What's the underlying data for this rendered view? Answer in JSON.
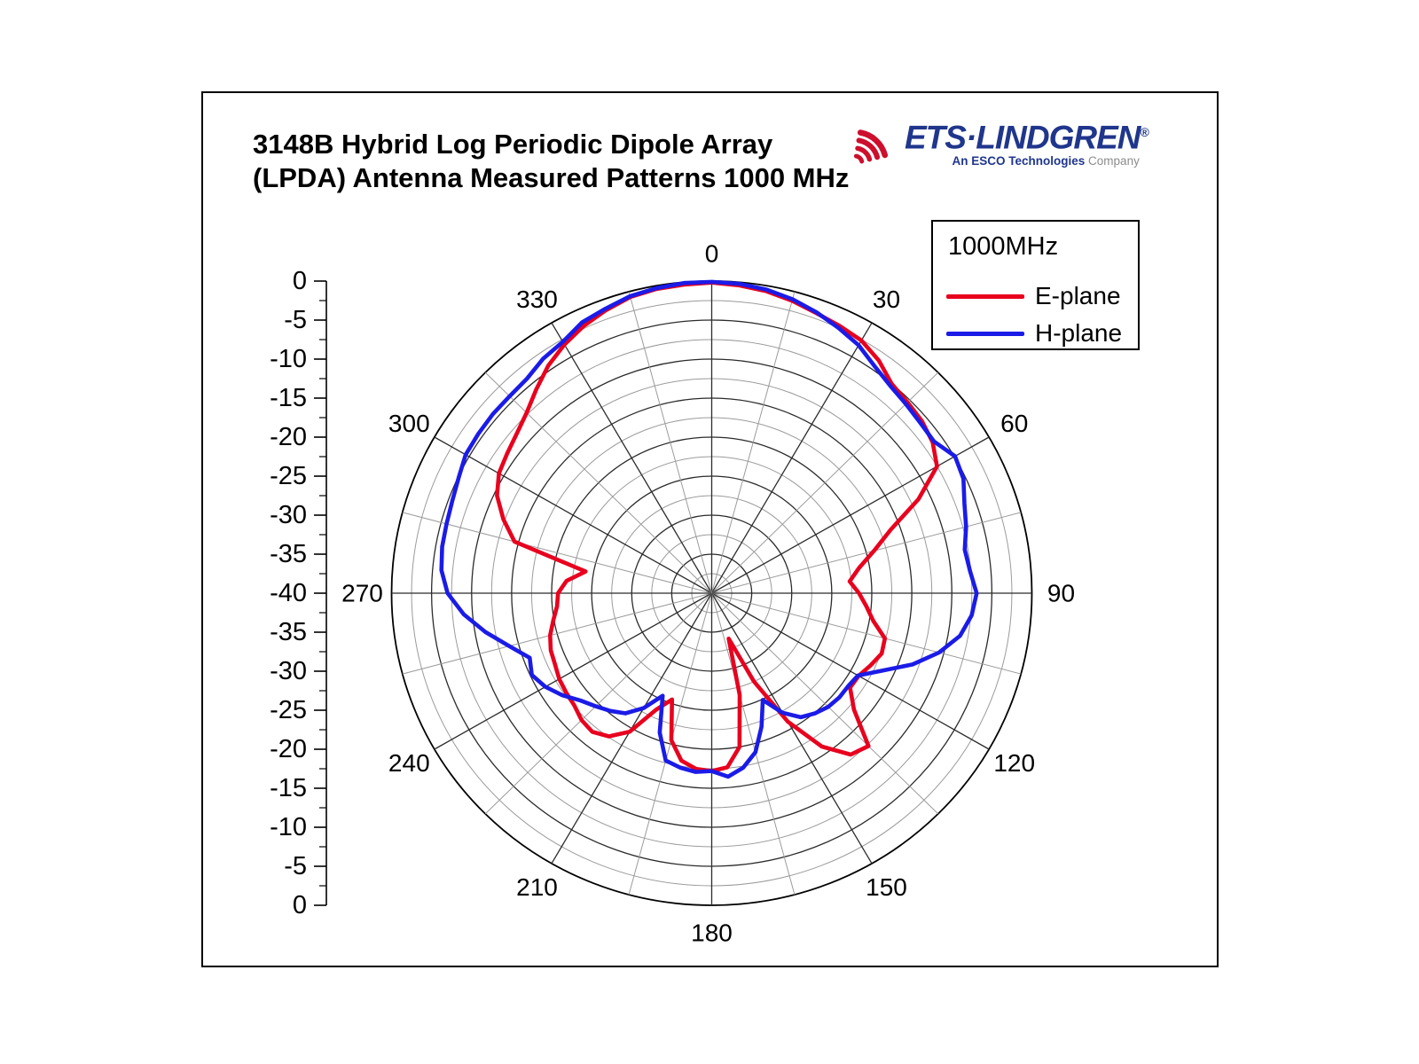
{
  "figure": {
    "title_line1": "3148B Hybrid Log Periodic Dipole Array",
    "title_line2": "(LPDA) Antenna Measured Patterns 1000 MHz"
  },
  "brand": {
    "icon": "radio-waves-icon",
    "name": "ETS·LINDGREN",
    "registered": "®",
    "tagline_bold": "An ESCO Technologies",
    "tagline_light": " Company",
    "navy": "#20368C",
    "red": "#CE0E2D",
    "gray": "#8C8C8C"
  },
  "legend": {
    "title": "1000MHz",
    "items": [
      {
        "label": "E-plane",
        "color": "#E8001E"
      },
      {
        "label": "H-plane",
        "color": "#1B1BE8"
      }
    ]
  },
  "chart_data": {
    "type": "line",
    "polar": true,
    "title": "3148B Hybrid LPDA Antenna Measured Patterns 1000 MHz",
    "angle_unit": "degrees",
    "angle_labels": [
      "0",
      "30",
      "60",
      "90",
      "120",
      "150",
      "180",
      "210",
      "240",
      "270",
      "300",
      "330"
    ],
    "radial_axis": {
      "tick_labels": [
        "0",
        "-5",
        "-10",
        "-15",
        "-20",
        "-25",
        "-30",
        "-35",
        "-40",
        "-35",
        "-30",
        "-25",
        "-20",
        "-15",
        "-10",
        "-5",
        "0"
      ],
      "unit": "dB",
      "outer_db": 0,
      "center_db": -40,
      "ring_step_db": 2.5,
      "major_ring_step_db": 5,
      "spoke_step_deg": 15,
      "major_spoke_step_deg": 30
    },
    "grid": true,
    "legend_position": "top-right",
    "angles_deg": [
      0,
      5,
      10,
      15,
      20,
      25,
      30,
      35,
      40,
      45,
      50,
      55,
      60,
      65,
      70,
      75,
      80,
      85,
      90,
      95,
      100,
      105,
      110,
      115,
      120,
      125,
      130,
      135,
      140,
      145,
      150,
      155,
      160,
      165,
      170,
      175,
      180,
      185,
      190,
      195,
      200,
      205,
      210,
      215,
      220,
      225,
      230,
      235,
      240,
      245,
      250,
      255,
      260,
      265,
      270,
      275,
      280,
      285,
      290,
      295,
      300,
      305,
      310,
      315,
      320,
      325,
      330,
      335,
      340,
      345,
      350,
      355
    ],
    "series": [
      {
        "name": "E-plane",
        "color": "#E8001E",
        "values_db": [
          -0.2,
          -0.4,
          -0.7,
          -1.2,
          -1.8,
          -2.2,
          -2.6,
          -3.6,
          -5.0,
          -5.4,
          -5.7,
          -6.3,
          -7.5,
          -11.5,
          -16.2,
          -19.0,
          -21.3,
          -22.7,
          -21.6,
          -20.6,
          -19.5,
          -17.6,
          -17.4,
          -18.1,
          -18.8,
          -18.9,
          -16.8,
          -12.3,
          -13.0,
          -16.0,
          -21.0,
          -27.5,
          -33.8,
          -26.5,
          -20.0,
          -17.6,
          -17.2,
          -17.4,
          -18.2,
          -20.5,
          -25.5,
          -23.5,
          -19.5,
          -17.6,
          -16.8,
          -17.0,
          -17.6,
          -17.8,
          -18.0,
          -18.4,
          -18.6,
          -19.1,
          -19.9,
          -20.6,
          -20.8,
          -21.8,
          -24.0,
          -14.5,
          -12.3,
          -10.4,
          -9.3,
          -8.8,
          -8.2,
          -7.3,
          -5.9,
          -4.4,
          -3.2,
          -2.2,
          -1.4,
          -0.7,
          -0.4,
          -0.3
        ]
      },
      {
        "name": "H-plane",
        "color": "#1B1BE8",
        "values_db": [
          -0.1,
          -0.2,
          -0.5,
          -1.0,
          -1.7,
          -2.5,
          -3.3,
          -4.5,
          -5.3,
          -5.7,
          -6.0,
          -6.1,
          -4.9,
          -5.3,
          -6.4,
          -7.1,
          -7.9,
          -7.6,
          -6.9,
          -7.4,
          -8.5,
          -10.6,
          -13.3,
          -16.5,
          -18.9,
          -19.2,
          -19.2,
          -19.4,
          -19.9,
          -20.6,
          -22.3,
          -24.9,
          -21.8,
          -18.9,
          -17.3,
          -16.4,
          -17.2,
          -17.0,
          -17.3,
          -17.8,
          -21.0,
          -25.5,
          -23.0,
          -21.2,
          -20.3,
          -19.5,
          -18.6,
          -17.2,
          -16.0,
          -15.2,
          -15.8,
          -13.8,
          -11.3,
          -8.9,
          -7.0,
          -6.1,
          -5.8,
          -5.7,
          -5.5,
          -5.1,
          -4.5,
          -4.4,
          -4.3,
          -4.3,
          -4.1,
          -3.3,
          -2.8,
          -1.7,
          -1.2,
          -0.6,
          -0.3,
          -0.1
        ]
      }
    ]
  }
}
